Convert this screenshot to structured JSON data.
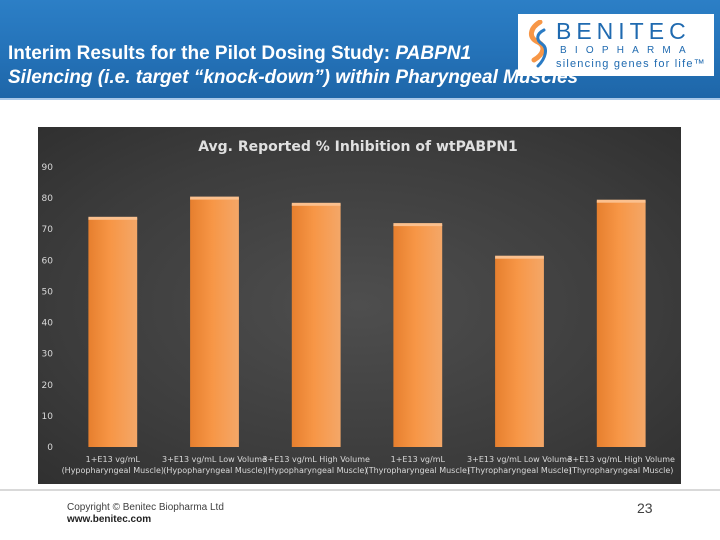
{
  "header": {
    "title_line1_plain": "Interim Results for the Pilot Dosing Study: ",
    "title_line1_italic": "PABPN1",
    "title_line2": "Silencing (i.e. target “knock-down”) within Pharyngeal Muscles"
  },
  "logo": {
    "name": "BENITEC",
    "sub": "BIOPHARMA",
    "tagline": "silencing genes for life™",
    "icon": "benitec-swirl-icon"
  },
  "chart_data": {
    "type": "bar",
    "title": "Avg. Reported % Inhibition of wtPABPN1",
    "xlabel": "",
    "ylabel": "",
    "ylim": [
      0,
      90
    ],
    "yticks": [
      0,
      10,
      20,
      30,
      40,
      50,
      60,
      70,
      80,
      90
    ],
    "grid": false,
    "bar_color": "#f79646",
    "categories": [
      [
        "1+E13 vg/mL",
        "(Hypopharyngeal Muscle)"
      ],
      [
        "3+E13 vg/mL Low Volume",
        "(Hypopharyngeal Muscle)"
      ],
      [
        "3+E13 vg/mL High Volume",
        "(Hypopharyngeal Muscle)"
      ],
      [
        "1+E13 vg/mL",
        "(Thyropharyngeal Muscle)"
      ],
      [
        "3+E13 vg/mL Low Volume",
        "(Thyropharyngeal Muscle)"
      ],
      [
        "3+E13 vg/mL High Volume",
        "(Thyropharyngeal Muscle)"
      ]
    ],
    "values": [
      73.5,
      80,
      78,
      71.5,
      61,
      79
    ]
  },
  "footer": {
    "copyright": "Copyright © Benitec Biopharma Ltd",
    "website": "www.benitec.com",
    "page_number": "23"
  }
}
